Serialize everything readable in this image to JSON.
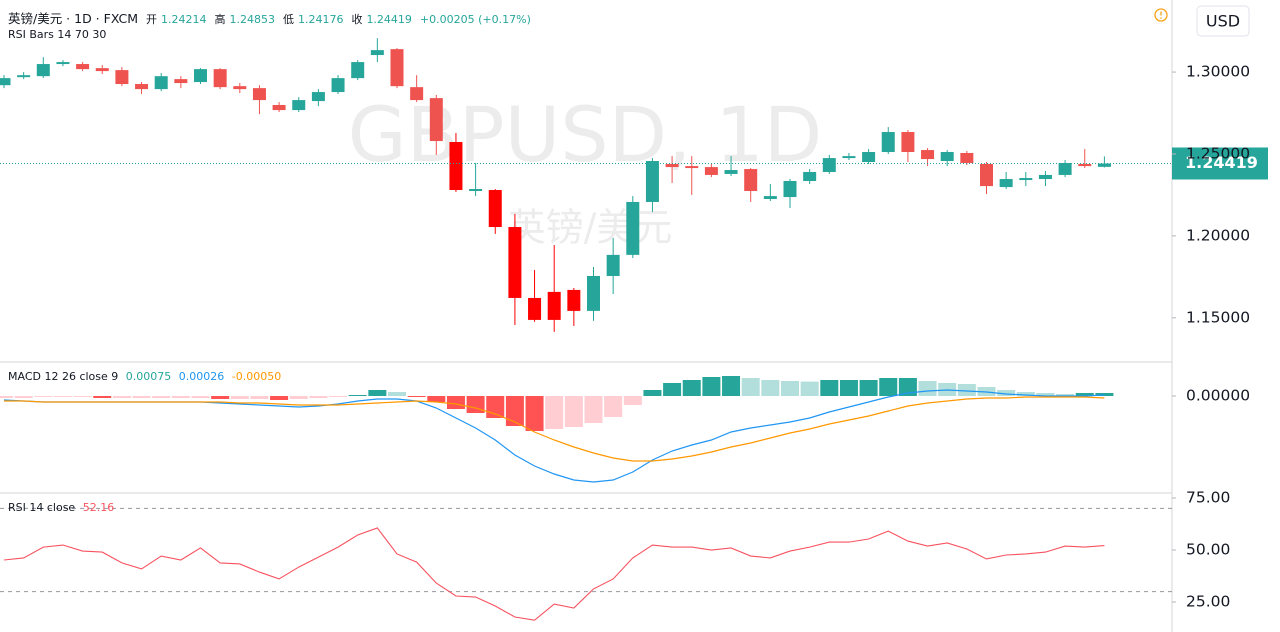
{
  "chart_data": [
    {
      "type": "candlestick",
      "title": "英镑/美元 · 1D · FXCM",
      "indicator": "RSI Bars 14 70 30",
      "watermark_symbol": "GBPUSD, 1D",
      "watermark_name": "英镑/美元",
      "currency": "USD",
      "ohlc_labels": [
        "开",
        "高",
        "低",
        "收"
      ],
      "change_label": "+0.00205 (+0.17%)",
      "up_color": "#26a69a",
      "down_color": "#ef5350",
      "oversold_down_color": "#ff0000",
      "ylim": [
        1.123,
        1.344
      ],
      "yticks": [
        {
          "value": 1.3,
          "label": "1.30000"
        },
        {
          "value": 1.25,
          "label": "1.25000"
        },
        {
          "value": 1.2,
          "label": "1.20000"
        },
        {
          "value": 1.15,
          "label": "1.15000"
        }
      ],
      "grid": false,
      "open": [
        1.292,
        1.2969,
        1.2975,
        1.3049,
        1.3049,
        1.3024,
        1.3012,
        1.2927,
        1.2896,
        1.2957,
        1.2939,
        1.3018,
        1.2914,
        1.2902,
        1.2799,
        1.2768,
        1.2823,
        1.2878,
        1.2963,
        1.3104,
        1.314,
        1.2908,
        1.2841,
        1.2573,
        1.2274,
        1.228,
        1.2054,
        1.1621,
        1.1658,
        1.167,
        1.1542,
        1.1755,
        1.1884,
        1.2207,
        1.2439,
        1.2426,
        1.242,
        1.2378,
        1.2408,
        1.2225,
        1.2237,
        1.2335,
        1.239,
        1.2475,
        1.2451,
        1.2512,
        1.2634,
        1.2524,
        1.2457,
        1.2506,
        1.2439,
        1.2298,
        1.2341,
        1.2347,
        1.2372,
        1.2439,
        1.24214
      ],
      "high": [
        1.2981,
        1.3,
        1.3091,
        1.3073,
        1.3061,
        1.3043,
        1.303,
        1.2939,
        1.2994,
        1.2975,
        1.3024,
        1.3024,
        1.2933,
        1.292,
        1.2817,
        1.2847,
        1.2896,
        1.2981,
        1.3073,
        1.3207,
        1.3146,
        1.2981,
        1.286,
        1.2628,
        1.2445,
        1.2286,
        1.2134,
        1.1792,
        1.1944,
        1.1682,
        1.181,
        1.1987,
        1.2243,
        1.2475,
        1.2487,
        1.2487,
        1.2439,
        1.2487,
        1.2414,
        1.2317,
        1.2347,
        1.2408,
        1.2494,
        1.2506,
        1.253,
        1.2664,
        1.2646,
        1.2536,
        1.2524,
        1.2518,
        1.2451,
        1.239,
        1.239,
        1.2396,
        1.2463,
        1.253,
        1.24853
      ],
      "low": [
        1.2902,
        1.2957,
        1.2963,
        1.3036,
        1.3006,
        1.2988,
        1.2914,
        1.2866,
        1.2884,
        1.2902,
        1.2927,
        1.2896,
        1.2872,
        1.2743,
        1.2756,
        1.2756,
        1.2792,
        1.2866,
        1.2951,
        1.3061,
        1.2902,
        1.2817,
        1.2494,
        1.2268,
        1.2243,
        1.2012,
        1.1456,
        1.1475,
        1.1414,
        1.145,
        1.1481,
        1.1645,
        1.1865,
        1.2146,
        1.2323,
        1.225,
        1.2359,
        1.2365,
        1.2207,
        1.2213,
        1.217,
        1.2317,
        1.2378,
        1.2463,
        1.2439,
        1.25,
        1.2451,
        1.2426,
        1.2426,
        1.2432,
        1.2256,
        1.2286,
        1.2304,
        1.2304,
        1.2359,
        1.2414,
        1.24176
      ],
      "close": [
        1.2963,
        1.2981,
        1.3049,
        1.3061,
        1.3018,
        1.3006,
        1.2927,
        1.2896,
        1.2975,
        1.2933,
        1.3018,
        1.2908,
        1.2896,
        1.2829,
        1.2768,
        1.2829,
        1.2878,
        1.2963,
        1.3061,
        1.3134,
        1.2914,
        1.2829,
        1.2579,
        1.228,
        1.2286,
        1.2054,
        1.1621,
        1.1487,
        1.1487,
        1.1542,
        1.1755,
        1.1884,
        1.2207,
        1.2457,
        1.242,
        1.2414,
        1.2372,
        1.2402,
        1.2274,
        1.2243,
        1.2335,
        1.239,
        1.2475,
        1.2487,
        1.2512,
        1.2634,
        1.2512,
        1.2469,
        1.2512,
        1.2445,
        1.2304,
        1.2347,
        1.2353,
        1.2372,
        1.2445,
        1.2426,
        1.24419
      ]
    },
    {
      "type": "macd",
      "title": "MACD 12 26 close 9",
      "ylim": [
        -0.02425,
        0.0085
      ],
      "yticks": [
        {
          "value": 0,
          "label": "0.00000"
        }
      ],
      "histogram": {
        "value_label": "0.00075",
        "colors": {
          "up_rising": "#26a69a",
          "up_falling": "#b2dfdb",
          "down_falling": "#ff5252",
          "down_rising": "#ffcdd2"
        },
        "values": [
          -0.0005,
          -0.0005,
          -0.00025,
          -0.00025,
          -0.00025,
          -0.0005,
          -0.0005,
          -0.0005,
          -0.0005,
          -0.0005,
          -0.0005,
          -0.00075,
          -0.00075,
          -0.00075,
          -0.001,
          -0.00075,
          -0.0005,
          -0.00025,
          0.00025,
          0.0015,
          0.001,
          -0.00025,
          -0.0015,
          -0.00325,
          -0.00425,
          -0.0055,
          -0.0075,
          -0.00875,
          -0.00825,
          -0.00775,
          -0.00675,
          -0.00525,
          -0.00225,
          0.0015,
          0.00325,
          0.004,
          0.00475,
          0.005,
          0.0045,
          0.004,
          0.00375,
          0.0036,
          0.004,
          0.004,
          0.004,
          0.0045,
          0.0045,
          0.00375,
          0.00325,
          0.003,
          0.00225,
          0.0015,
          0.001,
          0.00075,
          0.0005,
          0.00075,
          0.00075
        ]
      },
      "series": [
        {
          "color": "#2196f3",
          "value_label": "0.00026",
          "values": [
            -0.001,
            -0.00125,
            -0.0015,
            -0.0015,
            -0.0015,
            -0.0015,
            -0.0015,
            -0.0015,
            -0.0015,
            -0.0015,
            -0.0015,
            -0.00175,
            -0.002,
            -0.00225,
            -0.0025,
            -0.00275,
            -0.0025,
            -0.002,
            -0.00125,
            -0.00075,
            -0.00075,
            -0.00125,
            -0.003,
            -0.0055,
            -0.008,
            -0.011,
            -0.01475,
            -0.0175,
            -0.0195,
            -0.021,
            -0.0215,
            -0.021,
            -0.019,
            -0.016,
            -0.01375,
            -0.01225,
            -0.011,
            -0.009,
            -0.008,
            -0.00725,
            -0.0065,
            -0.0055,
            -0.004,
            -0.00275,
            -0.0015,
            -0.00025,
            0.00075,
            0.00125,
            0.0015,
            0.00125,
            0.001,
            0.0005,
            0.00025,
            0,
            0,
            0,
            0.00026
          ]
        },
        {
          "color": "#ff9800",
          "value_label": "-0.00050",
          "values": [
            -0.00125,
            -0.00125,
            -0.0015,
            -0.0015,
            -0.0015,
            -0.0015,
            -0.0015,
            -0.0015,
            -0.0015,
            -0.0015,
            -0.0015,
            -0.0015,
            -0.00175,
            -0.00175,
            -0.002,
            -0.00225,
            -0.00225,
            -0.00225,
            -0.002,
            -0.00175,
            -0.0015,
            -0.00125,
            -0.0015,
            -0.002,
            -0.003,
            -0.0045,
            -0.0065,
            -0.009,
            -0.011,
            -0.01275,
            -0.01425,
            -0.0155,
            -0.01625,
            -0.01625,
            -0.01575,
            -0.015,
            -0.014,
            -0.01275,
            -0.01175,
            -0.0105,
            -0.00925,
            -0.00825,
            -0.007,
            -0.006,
            -0.005,
            -0.00375,
            -0.0025,
            -0.00175,
            -0.00125,
            -0.00075,
            -0.0005,
            -0.0005,
            -0.00025,
            -0.00025,
            -0.00025,
            -0.00025,
            -0.0005
          ]
        }
      ]
    },
    {
      "type": "line",
      "title": "RSI 14 close",
      "color": "#f7525f",
      "bands": [
        70,
        30
      ],
      "ylim": [
        10.6,
        77.4
      ],
      "yticks": [
        {
          "value": 75,
          "label": "75.00"
        },
        {
          "value": 50,
          "label": "50.00"
        },
        {
          "value": 25,
          "label": "25.00"
        }
      ],
      "values": [
        45.2,
        46.2,
        51.4,
        52.4,
        49.5,
        49.0,
        43.8,
        40.9,
        47.1,
        45.2,
        51.0,
        43.8,
        43.3,
        39.4,
        36.1,
        41.8,
        46.6,
        51.4,
        57.2,
        60.6,
        48.1,
        44.2,
        34.1,
        27.9,
        27.4,
        23.1,
        17.8,
        16.3,
        24.0,
        22.1,
        31.3,
        36.1,
        46.2,
        52.4,
        51.4,
        51.4,
        50.0,
        51.0,
        47.1,
        46.2,
        49.5,
        51.4,
        53.8,
        53.8,
        55.3,
        59.1,
        54.3,
        51.9,
        53.4,
        50.5,
        45.7,
        47.6,
        48.1,
        49.0,
        51.9,
        51.4,
        52.16
      ]
    }
  ]
}
